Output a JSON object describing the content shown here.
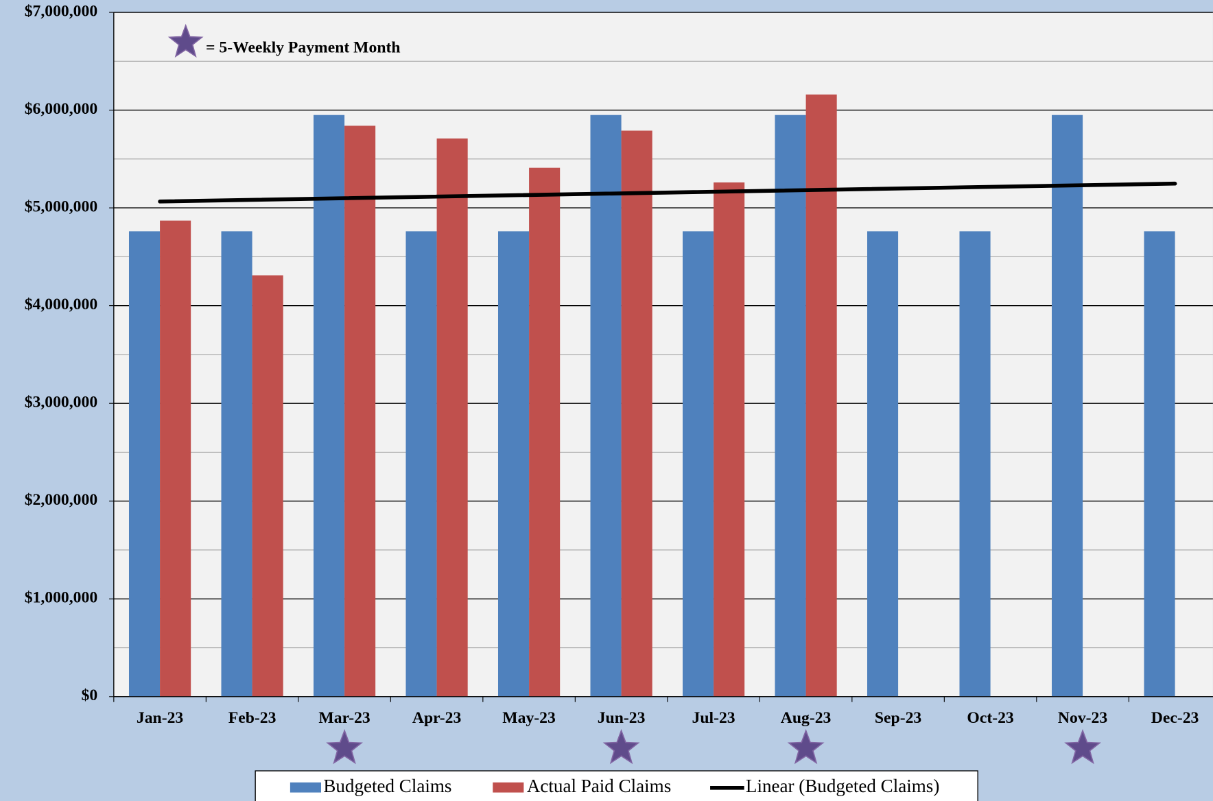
{
  "chart_data": {
    "type": "bar",
    "categories": [
      "Jan-23",
      "Feb-23",
      "Mar-23",
      "Apr-23",
      "May-23",
      "Jun-23",
      "Jul-23",
      "Aug-23",
      "Sep-23",
      "Oct-23",
      "Nov-23",
      "Dec-23"
    ],
    "series": [
      {
        "name": "Budgeted Claims",
        "color": "#4f81bd",
        "values": [
          4760000,
          4760000,
          5950000,
          4760000,
          4760000,
          5950000,
          4760000,
          5950000,
          4760000,
          4760000,
          5950000,
          4760000
        ]
      },
      {
        "name": "Actual Paid Claims",
        "color": "#c0504d",
        "values": [
          4870000,
          4310000,
          5840000,
          5710000,
          5410000,
          5790000,
          5260000,
          6160000,
          null,
          null,
          null,
          null
        ]
      }
    ],
    "trendline": {
      "name": "Linear (Budgeted Claims)",
      "color": "#000000",
      "kind": "linear"
    },
    "annotation": "= 5-Weekly Payment Month",
    "five_week_payment": [
      false,
      false,
      true,
      false,
      false,
      true,
      false,
      true,
      false,
      false,
      true,
      false
    ],
    "star_color": "#5f4b8b",
    "ylim": [
      0,
      7000000
    ],
    "yticks": [
      {
        "value": 0,
        "label": "$0"
      },
      {
        "value": 1000000,
        "label": "$1,000,000"
      },
      {
        "value": 2000000,
        "label": "$2,000,000"
      },
      {
        "value": 3000000,
        "label": "$3,000,000"
      },
      {
        "value": 4000000,
        "label": "$4,000,000"
      },
      {
        "value": 5000000,
        "label": "$5,000,000"
      },
      {
        "value": 6000000,
        "label": "$6,000,000"
      },
      {
        "value": 7000000,
        "label": "$7,000,000"
      }
    ],
    "grid": true,
    "minor_grid": true,
    "legend": "bottom"
  }
}
